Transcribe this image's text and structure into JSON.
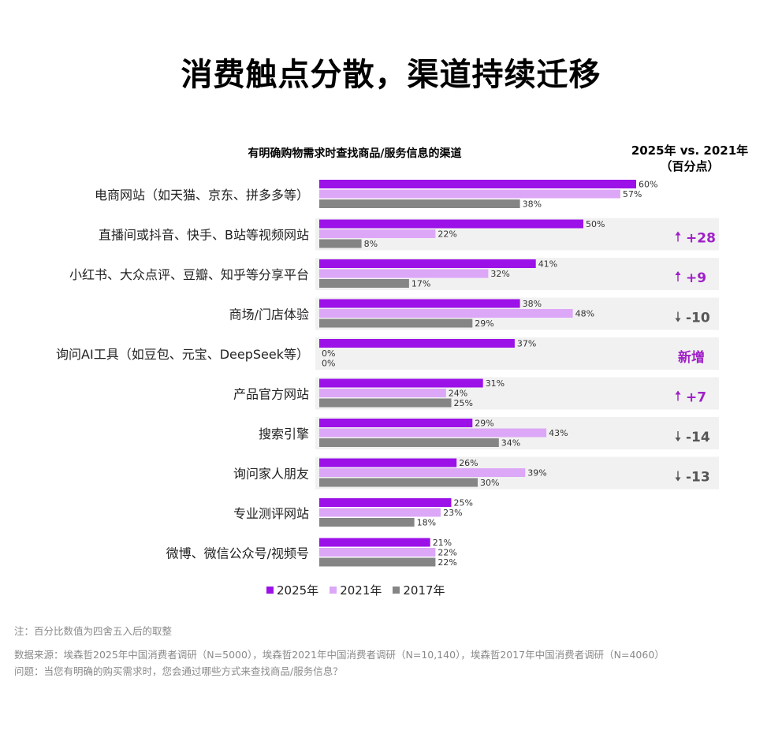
{
  "title": "消费触点分散，渠道持续迁移",
  "chart_data": {
    "type": "bar",
    "orientation": "horizontal",
    "title": "有明确购物需求时查找商品/服务信息的渠道",
    "delta_title_line1": "2025年 vs. 2021年",
    "delta_title_line2": "（百分点）",
    "categories": [
      "电商网站（如天猫、京东、拼多多等）",
      "直播间或抖音、快手、B站等视频网站",
      "小红书、大众点评、豆瓣、知乎等分享平台",
      "商场/门店体验",
      "询问AI工具（如豆包、元宝、DeepSeek等）",
      "产品官方网站",
      "搜索引擎",
      "询问家人朋友",
      "专业测评网站",
      "微博、微信公众号/视频号"
    ],
    "series": [
      {
        "name": "2025年",
        "color": "#9b11e8",
        "values": [
          60,
          50,
          41,
          38,
          37,
          31,
          29,
          26,
          25,
          21
        ]
      },
      {
        "name": "2021年",
        "color": "#dca7f7",
        "values": [
          57,
          22,
          32,
          48,
          0,
          24,
          43,
          39,
          23,
          22
        ]
      },
      {
        "name": "2017年",
        "color": "#858585",
        "values": [
          38,
          8,
          17,
          29,
          0,
          25,
          34,
          30,
          18,
          22
        ]
      }
    ],
    "deltas": [
      {
        "arrow": "",
        "text": ""
      },
      {
        "arrow": "up",
        "text": "+28"
      },
      {
        "arrow": "up",
        "text": "+9"
      },
      {
        "arrow": "down",
        "text": "-10"
      },
      {
        "arrow": "",
        "text": "新增"
      },
      {
        "arrow": "up",
        "text": "+7"
      },
      {
        "arrow": "down",
        "text": "-14"
      },
      {
        "arrow": "down",
        "text": "-13"
      },
      {
        "arrow": "",
        "text": ""
      },
      {
        "arrow": "",
        "text": ""
      }
    ],
    "value_suffix": "%",
    "highlight_rows": [
      1,
      2,
      3,
      4,
      5,
      6,
      7
    ],
    "colors": {
      "up": "#a020c8",
      "down": "#555555",
      "new": "#a020c8",
      "highlight": "#f1f1f1"
    }
  },
  "notes": {
    "note": "注：百分比数值为四舍五入后的取整",
    "source": "数据来源：埃森哲2025年中国消费者调研（N=5000），埃森哲2021年中国消费者调研（N=10,140），埃森哲2017年中国消费者调研（N=4060）",
    "question": "问题：当您有明确的购买需求时，您会通过哪些方式来查找商品/服务信息？"
  }
}
